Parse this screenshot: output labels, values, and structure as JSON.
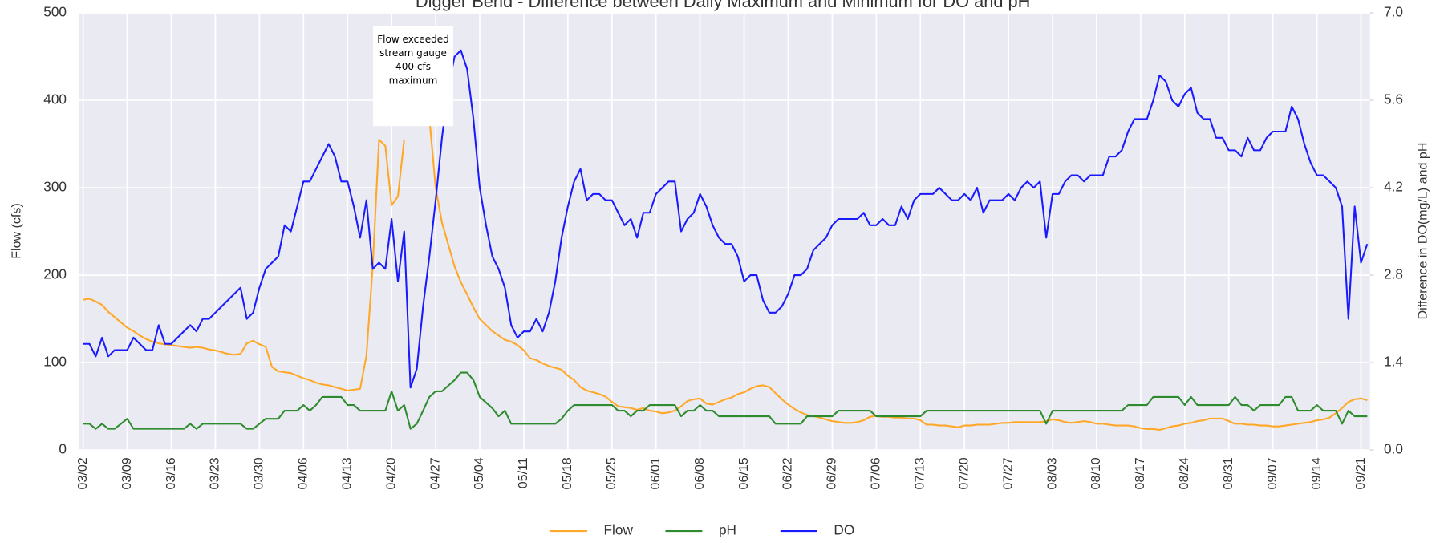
{
  "chart_data": {
    "type": "line",
    "title": "Digger Bend - Difference between Daily Maximum and Minimum for DO and pH",
    "y_label": "Flow (cfs)",
    "y2_label": "Difference in DO(mg/L) and pH",
    "annotation": "Flow exceeded stream gauge 400 cfs maximum",
    "grid": true,
    "legend": "bottom",
    "ylim": [
      0,
      500
    ],
    "yticks": [
      0,
      100,
      200,
      300,
      400,
      500
    ],
    "y2lim": [
      0,
      7
    ],
    "y2ticks": [
      {
        "value": 0,
        "label": "0.0"
      },
      1.4,
      2.8,
      4.2,
      5.6,
      {
        "value": 7,
        "label": "7.0"
      }
    ],
    "categories": [
      "03/02",
      null,
      null,
      null,
      null,
      null,
      null,
      "03/09",
      null,
      null,
      null,
      null,
      null,
      null,
      "03/16",
      null,
      null,
      null,
      null,
      null,
      null,
      "03/23",
      null,
      null,
      null,
      null,
      null,
      null,
      "03/30",
      null,
      null,
      null,
      null,
      null,
      null,
      "04/06",
      null,
      null,
      null,
      null,
      null,
      null,
      "04/13",
      null,
      null,
      null,
      null,
      null,
      null,
      "04/20",
      null,
      null,
      null,
      null,
      null,
      null,
      "04/27",
      null,
      null,
      null,
      null,
      null,
      null,
      "05/04",
      null,
      null,
      null,
      null,
      null,
      null,
      "05/11",
      null,
      null,
      null,
      null,
      null,
      null,
      "05/18",
      null,
      null,
      null,
      null,
      null,
      null,
      "05/25",
      null,
      null,
      null,
      null,
      null,
      null,
      "06/01",
      null,
      null,
      null,
      null,
      null,
      null,
      "06/08",
      null,
      null,
      null,
      null,
      null,
      null,
      "06/15",
      null,
      null,
      null,
      null,
      null,
      null,
      "06/22",
      null,
      null,
      null,
      null,
      null,
      null,
      "06/29",
      null,
      null,
      null,
      null,
      null,
      null,
      "07/06",
      null,
      null,
      null,
      null,
      null,
      null,
      "07/13",
      null,
      null,
      null,
      null,
      null,
      null,
      "07/20",
      null,
      null,
      null,
      null,
      null,
      null,
      "07/27",
      null,
      null,
      null,
      null,
      null,
      null,
      "08/03",
      null,
      null,
      null,
      null,
      null,
      null,
      "08/10",
      null,
      null,
      null,
      null,
      null,
      null,
      "08/17",
      null,
      null,
      null,
      null,
      null,
      null,
      "08/24",
      null,
      null,
      null,
      null,
      null,
      null,
      "08/31",
      null,
      null,
      null,
      null,
      null,
      null,
      "09/07",
      null,
      null,
      null,
      null,
      null,
      null,
      "09/14",
      null,
      null,
      null,
      null,
      null,
      null,
      "09/21",
      null
    ],
    "series": [
      {
        "name": "Flow",
        "color": "#ffa726",
        "axis": "y",
        "values": [
          172,
          173,
          170,
          166,
          158,
          152,
          146,
          140,
          136,
          131,
          127,
          124,
          122,
          121,
          120,
          119,
          118,
          117,
          118,
          117,
          115,
          114,
          112,
          110,
          109,
          110,
          122,
          125,
          121,
          118,
          95,
          90,
          89,
          88,
          85,
          82,
          80,
          77,
          75,
          74,
          72,
          70,
          68,
          69,
          70,
          108,
          210,
          355,
          348,
          280,
          290,
          355,
          null,
          null,
          null,
          380,
          300,
          260,
          235,
          210,
          192,
          178,
          163,
          150,
          143,
          136,
          131,
          126,
          124,
          120,
          114,
          105,
          103,
          99,
          96,
          94,
          92,
          85,
          80,
          72,
          68,
          66,
          64,
          61,
          55,
          50,
          49,
          48,
          46,
          48,
          45,
          44,
          42,
          43,
          45,
          50,
          56,
          58,
          59,
          53,
          52,
          55,
          58,
          60,
          64,
          66,
          70,
          73,
          74,
          72,
          65,
          58,
          52,
          47,
          43,
          40,
          39,
          37,
          35,
          33,
          32,
          31,
          31,
          32,
          34,
          38,
          39,
          38,
          38,
          37,
          37,
          36,
          36,
          34,
          29,
          29,
          28,
          28,
          27,
          26,
          28,
          28,
          29,
          29,
          29,
          30,
          31,
          31,
          32,
          32,
          32,
          32,
          32,
          33,
          35,
          34,
          32,
          31,
          32,
          33,
          32,
          30,
          30,
          29,
          28,
          28,
          28,
          27,
          25,
          24,
          24,
          23,
          25,
          27,
          28,
          30,
          31,
          33,
          34,
          36,
          36,
          36,
          33,
          30,
          30,
          29,
          29,
          28,
          28,
          27,
          27,
          28,
          29,
          30,
          31,
          32,
          34,
          35,
          37,
          42,
          48,
          55,
          58,
          59,
          57
        ]
      },
      {
        "name": "pH",
        "color": "#2e8b2e",
        "axis": "y2",
        "values": [
          0.42,
          0.42,
          0.34,
          0.42,
          0.34,
          0.34,
          0.42,
          0.5,
          0.34,
          0.34,
          0.34,
          0.34,
          0.34,
          0.34,
          0.34,
          0.34,
          0.34,
          0.42,
          0.34,
          0.42,
          0.42,
          0.42,
          0.42,
          0.42,
          0.42,
          0.42,
          0.34,
          0.34,
          0.42,
          0.5,
          0.5,
          0.5,
          0.63,
          0.63,
          0.63,
          0.72,
          0.63,
          0.72,
          0.85,
          0.85,
          0.85,
          0.85,
          0.72,
          0.72,
          0.63,
          0.63,
          0.63,
          0.63,
          0.63,
          0.94,
          0.63,
          0.72,
          0.34,
          0.42,
          0.63,
          0.85,
          0.94,
          0.94,
          1.03,
          1.12,
          1.24,
          1.24,
          1.12,
          0.85,
          0.76,
          0.67,
          0.54,
          0.63,
          0.42,
          0.42,
          0.42,
          0.42,
          0.42,
          0.42,
          0.42,
          0.42,
          0.5,
          0.63,
          0.72,
          0.72,
          0.72,
          0.72,
          0.72,
          0.72,
          0.72,
          0.63,
          0.63,
          0.54,
          0.63,
          0.63,
          0.72,
          0.72,
          0.72,
          0.72,
          0.72,
          0.54,
          0.63,
          0.63,
          0.72,
          0.63,
          0.63,
          0.54,
          0.54,
          0.54,
          0.54,
          0.54,
          0.54,
          0.54,
          0.54,
          0.54,
          0.42,
          0.42,
          0.42,
          0.42,
          0.42,
          0.54,
          0.54,
          0.54,
          0.54,
          0.54,
          0.63,
          0.63,
          0.63,
          0.63,
          0.63,
          0.63,
          0.54,
          0.54,
          0.54,
          0.54,
          0.54,
          0.54,
          0.54,
          0.54,
          0.63,
          0.63,
          0.63,
          0.63,
          0.63,
          0.63,
          0.63,
          0.63,
          0.63,
          0.63,
          0.63,
          0.63,
          0.63,
          0.63,
          0.63,
          0.63,
          0.63,
          0.63,
          0.63,
          0.42,
          0.63,
          0.63,
          0.63,
          0.63,
          0.63,
          0.63,
          0.63,
          0.63,
          0.63,
          0.63,
          0.63,
          0.63,
          0.72,
          0.72,
          0.72,
          0.72,
          0.85,
          0.85,
          0.85,
          0.85,
          0.85,
          0.72,
          0.85,
          0.72,
          0.72,
          0.72,
          0.72,
          0.72,
          0.72,
          0.85,
          0.72,
          0.72,
          0.63,
          0.72,
          0.72,
          0.72,
          0.72,
          0.85,
          0.85,
          0.63,
          0.63,
          0.63,
          0.72,
          0.63,
          0.63,
          0.63,
          0.42,
          0.63,
          0.54,
          0.54,
          0.54
        ]
      },
      {
        "name": "DO",
        "color": "#1a1aff",
        "axis": "y2",
        "values": [
          1.7,
          1.7,
          1.5,
          1.8,
          1.5,
          1.6,
          1.6,
          1.6,
          1.8,
          1.7,
          1.6,
          1.6,
          2.0,
          1.7,
          1.7,
          1.8,
          1.9,
          2.0,
          1.9,
          2.1,
          2.1,
          2.2,
          2.3,
          2.4,
          2.5,
          2.6,
          2.1,
          2.2,
          2.6,
          2.9,
          3.0,
          3.1,
          3.6,
          3.5,
          3.9,
          4.3,
          4.3,
          4.5,
          4.7,
          4.9,
          4.7,
          4.3,
          4.3,
          3.9,
          3.4,
          4.0,
          2.9,
          3.0,
          2.9,
          3.7,
          2.7,
          3.5,
          1.0,
          1.3,
          2.3,
          3.1,
          4.0,
          5.0,
          5.8,
          6.3,
          6.4,
          6.1,
          5.3,
          4.2,
          3.6,
          3.1,
          2.9,
          2.6,
          2.0,
          1.8,
          1.9,
          1.9,
          2.1,
          1.9,
          2.2,
          2.7,
          3.4,
          3.9,
          4.3,
          4.5,
          4.0,
          4.1,
          4.1,
          4.0,
          4.0,
          3.8,
          3.6,
          3.7,
          3.4,
          3.8,
          3.8,
          4.1,
          4.2,
          4.3,
          4.3,
          3.5,
          3.7,
          3.8,
          4.1,
          3.9,
          3.6,
          3.4,
          3.3,
          3.3,
          3.1,
          2.7,
          2.8,
          2.8,
          2.4,
          2.2,
          2.2,
          2.3,
          2.5,
          2.8,
          2.8,
          2.9,
          3.2,
          3.3,
          3.4,
          3.6,
          3.7,
          3.7,
          3.7,
          3.7,
          3.8,
          3.6,
          3.6,
          3.7,
          3.6,
          3.6,
          3.9,
          3.7,
          4.0,
          4.1,
          4.1,
          4.1,
          4.2,
          4.1,
          4.0,
          4.0,
          4.1,
          4.0,
          4.2,
          3.8,
          4.0,
          4.0,
          4.0,
          4.1,
          4.0,
          4.2,
          4.3,
          4.2,
          4.3,
          3.4,
          4.1,
          4.1,
          4.3,
          4.4,
          4.4,
          4.3,
          4.4,
          4.4,
          4.4,
          4.7,
          4.7,
          4.8,
          5.1,
          5.3,
          5.3,
          5.3,
          5.6,
          6.0,
          5.9,
          5.6,
          5.5,
          5.7,
          5.8,
          5.4,
          5.3,
          5.3,
          5.0,
          5.0,
          4.8,
          4.8,
          4.7,
          5.0,
          4.8,
          4.8,
          5.0,
          5.1,
          5.1,
          5.1,
          5.5,
          5.3,
          4.9,
          4.6,
          4.4,
          4.4,
          4.3,
          4.2,
          3.9,
          2.1,
          3.9,
          3.0,
          3.3
        ]
      }
    ]
  }
}
